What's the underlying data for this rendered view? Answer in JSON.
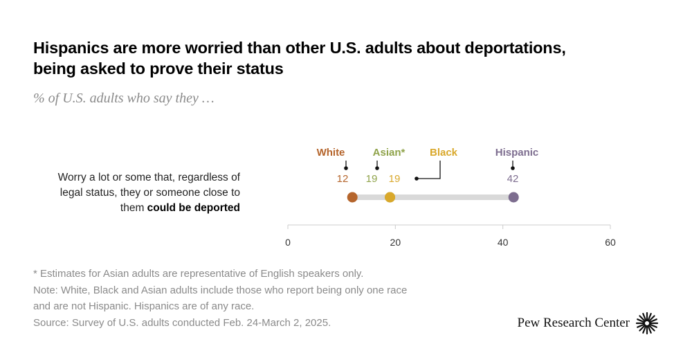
{
  "title_line1": "Hispanics are more worried than other U.S. adults about deportations,",
  "title_line2": "being asked to prove their status",
  "subtitle": "% of U.S. adults who say they …",
  "row_label_line1": "Worry a lot or some that, regardless of",
  "row_label_line2": "legal status, they or someone close to",
  "row_label_line3_plain": "them ",
  "row_label_line3_bold": "could be deported",
  "notes": [
    "* Estimates for Asian adults are representative of English speakers only.",
    "Note: White, Black and Asian adults include those who report being only one race",
    "and are not Hispanic. Hispanics are of any race.",
    "Source: Survey of U.S. adults conducted Feb. 24-March 2, 2025."
  ],
  "brand": "Pew Research Center",
  "brand_icon": "sunburst-logo-icon",
  "colors": {
    "White": "#b5652c",
    "Asian": "#8fa34a",
    "Black": "#d9a82b",
    "Hispanic": "#7d6d8f",
    "track": "#d9d9d9",
    "axis": "#cccccc"
  },
  "chart_data": {
    "type": "dot",
    "xlim": [
      0,
      60
    ],
    "ticks": [
      0,
      20,
      40,
      60
    ],
    "categories": [
      "Worry a lot or some that, regardless of legal status, they or someone close to them could be deported"
    ],
    "series": [
      {
        "name": "White",
        "values": [
          12
        ]
      },
      {
        "name": "Asian*",
        "values": [
          19
        ]
      },
      {
        "name": "Black",
        "values": [
          19
        ]
      },
      {
        "name": "Hispanic",
        "values": [
          42
        ]
      }
    ]
  }
}
